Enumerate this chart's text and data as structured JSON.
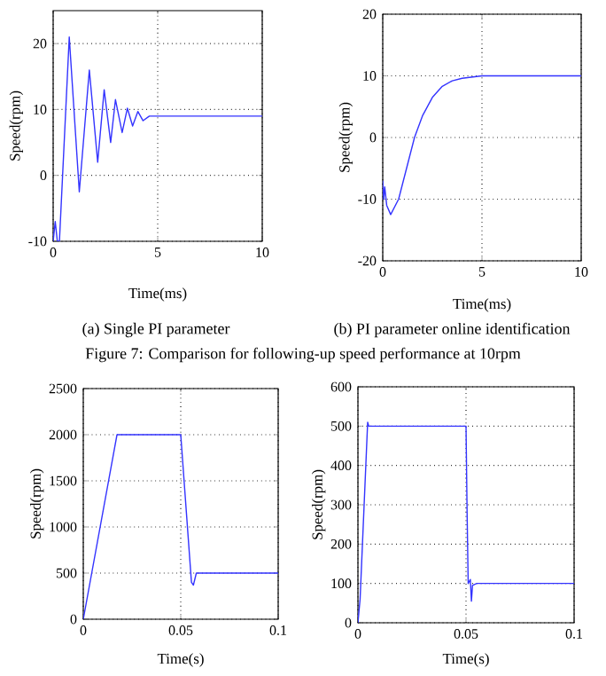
{
  "chart_data": [
    {
      "type": "line",
      "xlabel": "Time(ms)",
      "ylabel": "Speed(rpm)",
      "annotations": [
        "(a) Single PI parameter",
        "Figure 7:   Comparison for following-up speed performance at 10rpm"
      ],
      "xlim": [
        0,
        10
      ],
      "ylim": [
        -10,
        25
      ],
      "xticks": [
        0,
        5,
        10
      ],
      "yticks": [
        -10,
        0,
        10,
        20
      ],
      "grid": true,
      "x": [
        0,
        0.1,
        0.2,
        0.3,
        0.77,
        1.25,
        1.73,
        2.13,
        2.44,
        2.75,
        2.98,
        3.3,
        3.55,
        3.8,
        4.05,
        4.3,
        4.6,
        10
      ],
      "series": [
        {
          "color": "#3333ff",
          "values": [
            -10,
            -7,
            -10,
            -10,
            21,
            -2.5,
            16,
            2,
            13,
            5,
            11.5,
            6.5,
            10.2,
            7.5,
            9.7,
            8.3,
            9,
            9
          ]
        }
      ]
    },
    {
      "type": "line",
      "xlabel": "Time(ms)",
      "ylabel": "Speed(rpm)",
      "annotations": [
        "(b) PI parameter online identification"
      ],
      "xlim": [
        0,
        10
      ],
      "ylim": [
        -20,
        20
      ],
      "xticks": [
        0,
        5,
        10
      ],
      "yticks": [
        -20,
        -10,
        0,
        10,
        20
      ],
      "grid": true,
      "x": [
        0,
        0.05,
        0.1,
        0.2,
        0.4,
        0.8,
        1.2,
        1.6,
        2,
        2.5,
        3,
        3.5,
        4,
        5,
        10
      ],
      "series": [
        {
          "color": "#3333ff",
          "values": [
            -7,
            -10,
            -8,
            -11,
            -12.5,
            -10,
            -5,
            0,
            3.5,
            6.5,
            8.3,
            9.2,
            9.6,
            10,
            10
          ]
        }
      ]
    },
    {
      "type": "line",
      "xlabel": "Time(s)",
      "ylabel": "Speed(rpm)",
      "xlim": [
        0,
        0.1
      ],
      "ylim": [
        0,
        2500
      ],
      "xticks": [
        0,
        0.05,
        0.1
      ],
      "yticks": [
        0,
        500,
        1000,
        1500,
        2000,
        2500
      ],
      "grid": true,
      "x": [
        0,
        0.0173,
        0.05,
        0.0555,
        0.0565,
        0.058,
        0.1
      ],
      "series": [
        {
          "color": "#3333ff",
          "values": [
            0,
            2000,
            2000,
            400,
            370,
            500,
            500
          ]
        }
      ]
    },
    {
      "type": "line",
      "xlabel": "Time(s)",
      "ylabel": "Speed(rpm)",
      "xlim": [
        0,
        0.1
      ],
      "ylim": [
        0,
        600
      ],
      "xticks": [
        0,
        0.05,
        0.1
      ],
      "yticks": [
        0,
        100,
        200,
        300,
        400,
        500,
        600
      ],
      "grid": true,
      "x": [
        0,
        0.001,
        0.0045,
        0.005,
        0.05,
        0.0505,
        0.051,
        0.052,
        0.0525,
        0.053,
        0.055,
        0.1
      ],
      "series": [
        {
          "color": "#3333ff",
          "values": [
            0,
            60,
            510,
            500,
            500,
            280,
            100,
            110,
            55,
            95,
            100,
            100
          ]
        }
      ]
    }
  ]
}
